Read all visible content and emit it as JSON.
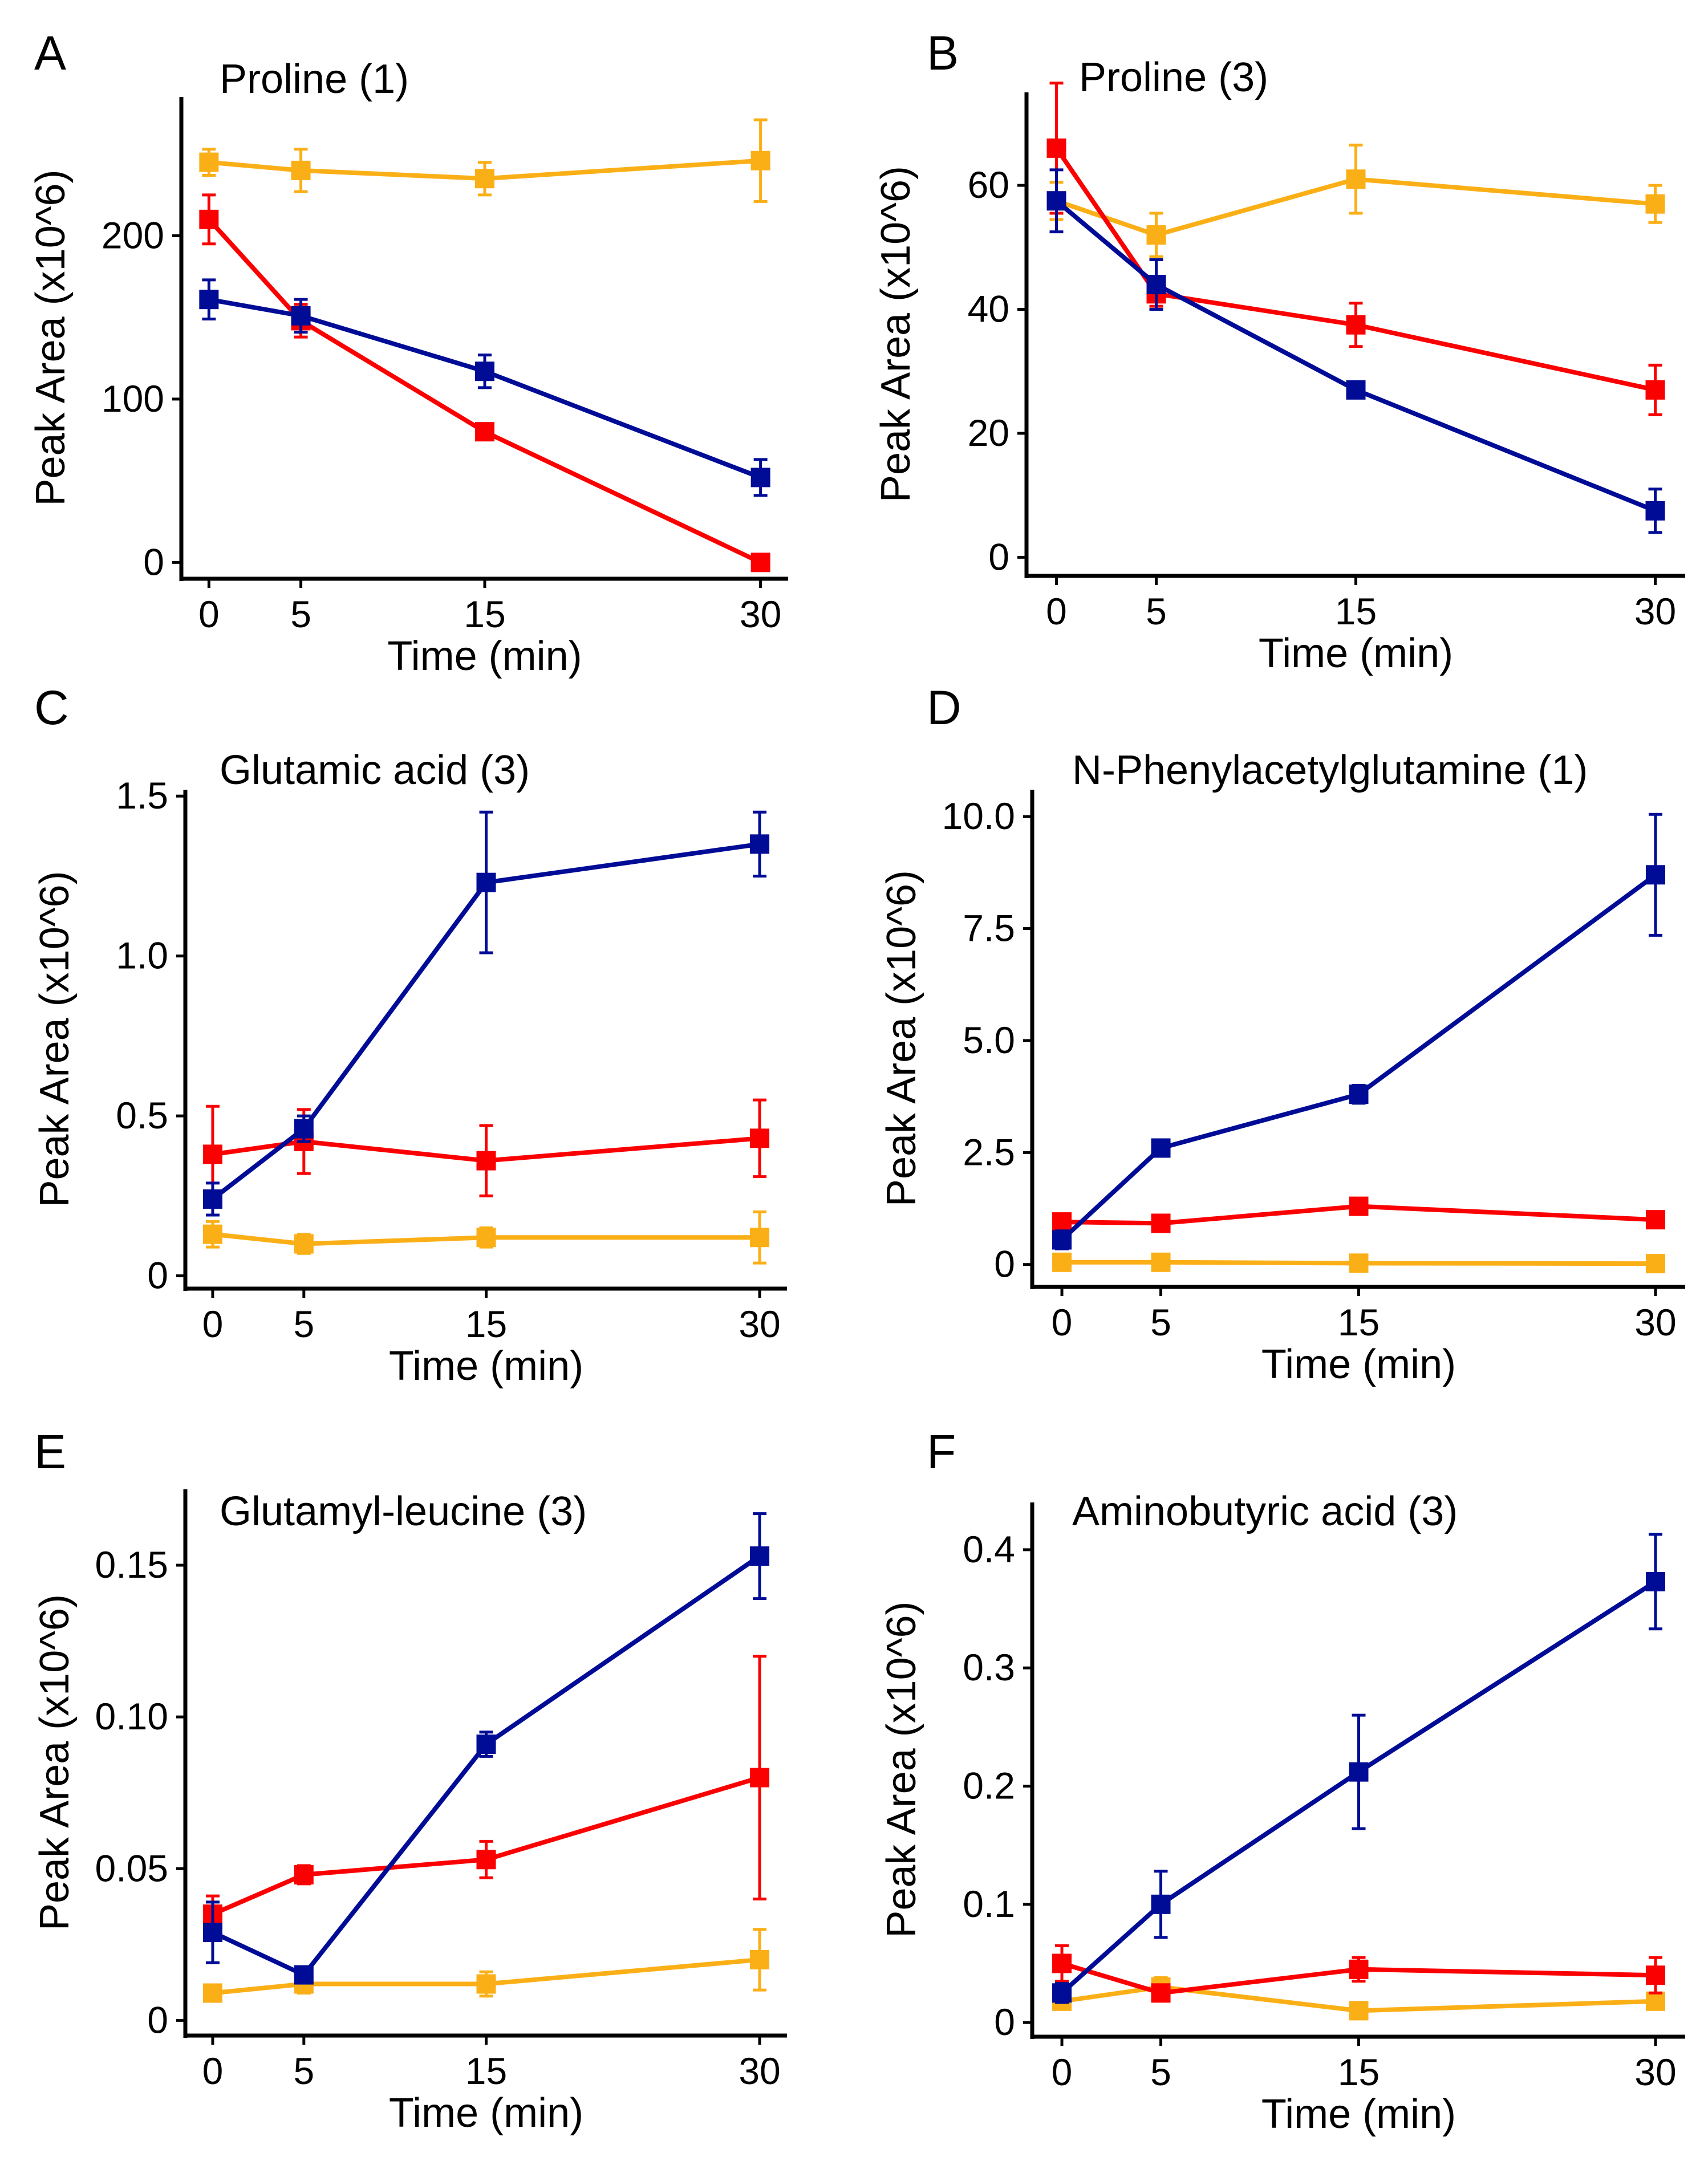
{
  "colors": {
    "blue": "#000c96",
    "red": "#fb0000",
    "orange": "#fbaf17",
    "axis": "#000000"
  },
  "chart_data": [
    {
      "panel": "A",
      "type": "line",
      "title": "Proline (1)",
      "xlabel": "Time (min)",
      "ylabel": "Peak Area (x10^6)",
      "x": [
        0,
        5,
        15,
        30
      ],
      "xlim": [
        -1.5,
        31.5
      ],
      "ylim": [
        -10,
        285
      ],
      "yticks": [
        0,
        100,
        200
      ],
      "ytick_labels": [
        "0",
        "100",
        "200"
      ],
      "xtick_labels": [
        "0",
        "5",
        "15",
        "30"
      ],
      "series": [
        {
          "name": "orange",
          "color": "orange",
          "values": [
            245,
            240,
            235,
            246
          ],
          "errors": [
            8,
            13,
            10,
            25
          ]
        },
        {
          "name": "red",
          "color": "red",
          "values": [
            210,
            148,
            80,
            0
          ],
          "errors": [
            15,
            10,
            3,
            2
          ]
        },
        {
          "name": "blue",
          "color": "blue",
          "values": [
            161,
            151,
            117,
            52
          ],
          "errors": [
            12,
            10,
            10,
            11
          ]
        }
      ]
    },
    {
      "panel": "B",
      "type": "line",
      "title": "Proline (3)",
      "xlabel": "Time (min)",
      "ylabel": "Peak Area (x10^6)",
      "x": [
        0,
        5,
        15,
        30
      ],
      "xlim": [
        -1.5,
        31.5
      ],
      "ylim": [
        -3,
        75
      ],
      "yticks": [
        0,
        20,
        40,
        60
      ],
      "ytick_labels": [
        "0",
        "20",
        "40",
        "60"
      ],
      "xtick_labels": [
        "0",
        "5",
        "15",
        "30"
      ],
      "series": [
        {
          "name": "orange",
          "color": "orange",
          "values": [
            57.5,
            52,
            61,
            57
          ],
          "errors": [
            3,
            3.5,
            5.5,
            3
          ]
        },
        {
          "name": "red",
          "color": "red",
          "values": [
            66,
            42.5,
            37.5,
            27
          ],
          "errors": [
            10.5,
            2,
            3.5,
            4
          ]
        },
        {
          "name": "blue",
          "color": "blue",
          "values": [
            57.5,
            44,
            27,
            7.5
          ],
          "errors": [
            5,
            4,
            1,
            3.5
          ]
        }
      ]
    },
    {
      "panel": "C",
      "type": "line",
      "title": "Glutamic acid (3)",
      "xlabel": "Time (min)",
      "ylabel": "Peak Area (x10^6)",
      "x": [
        0,
        5,
        15,
        30
      ],
      "xlim": [
        -1.5,
        31.5
      ],
      "ylim": [
        -0.04,
        1.52
      ],
      "yticks": [
        0,
        0.5,
        1.0,
        1.5
      ],
      "ytick_labels": [
        "0",
        "0.5",
        "1.0",
        "1.5"
      ],
      "xtick_labels": [
        "0",
        "5",
        "15",
        "30"
      ],
      "series": [
        {
          "name": "orange",
          "color": "orange",
          "values": [
            0.13,
            0.1,
            0.12,
            0.12
          ],
          "errors": [
            0.04,
            0.03,
            0.03,
            0.08
          ]
        },
        {
          "name": "red",
          "color": "red",
          "values": [
            0.38,
            0.42,
            0.36,
            0.43
          ],
          "errors": [
            0.15,
            0.1,
            0.11,
            0.12
          ]
        },
        {
          "name": "blue",
          "color": "blue",
          "values": [
            0.24,
            0.46,
            1.23,
            1.35
          ],
          "errors": [
            0.05,
            0.04,
            0.22,
            0.1
          ]
        }
      ]
    },
    {
      "panel": "D",
      "type": "line",
      "title": "N-Phenylacetylglutamine (1)",
      "xlabel": "Time (min)",
      "ylabel": "Peak Area (x10^6)",
      "x": [
        0,
        5,
        15,
        30
      ],
      "xlim": [
        -1.5,
        31.5
      ],
      "ylim": [
        -0.5,
        10.6
      ],
      "yticks": [
        0,
        2.5,
        5.0,
        7.5,
        10.0
      ],
      "ytick_labels": [
        "0",
        "2.5",
        "5.0",
        "7.5",
        "10.0"
      ],
      "xtick_labels": [
        "0",
        "5",
        "15",
        "30"
      ],
      "series": [
        {
          "name": "orange",
          "color": "orange",
          "values": [
            0.05,
            0.05,
            0.03,
            0.02
          ],
          "errors": [
            0.05,
            0.05,
            0.05,
            0.05
          ]
        },
        {
          "name": "red",
          "color": "red",
          "values": [
            0.95,
            0.92,
            1.3,
            1.0
          ],
          "errors": [
            0.1,
            0.1,
            0.15,
            0.15
          ]
        },
        {
          "name": "blue",
          "color": "blue",
          "values": [
            0.55,
            2.6,
            3.8,
            8.7
          ],
          "errors": [
            0.2,
            0.1,
            0.2,
            1.35
          ]
        }
      ]
    },
    {
      "panel": "E",
      "type": "line",
      "title": "Glutamyl-leucine (3)",
      "xlabel": "Time (min)",
      "ylabel": "Peak Area (x10^6)",
      "x": [
        0,
        5,
        15,
        30
      ],
      "xlim": [
        -1.5,
        31.5
      ],
      "ylim": [
        -0.005,
        0.175
      ],
      "yticks": [
        0,
        0.05,
        0.1,
        0.15
      ],
      "ytick_labels": [
        "0",
        "0.05",
        "0.10",
        "0.15"
      ],
      "xtick_labels": [
        "0",
        "5",
        "15",
        "30"
      ],
      "series": [
        {
          "name": "orange",
          "color": "orange",
          "values": [
            0.009,
            0.012,
            0.012,
            0.02
          ],
          "errors": [
            0.002,
            0.003,
            0.004,
            0.01
          ]
        },
        {
          "name": "red",
          "color": "red",
          "values": [
            0.035,
            0.048,
            0.053,
            0.08
          ],
          "errors": [
            0.006,
            0.003,
            0.006,
            0.04
          ]
        },
        {
          "name": "blue",
          "color": "blue",
          "values": [
            0.029,
            0.015,
            0.091,
            0.153
          ],
          "errors": [
            0.01,
            0.002,
            0.004,
            0.014
          ]
        }
      ]
    },
    {
      "panel": "F",
      "type": "line",
      "title": "Aminobutyric acid (3)",
      "xlabel": "Time (min)",
      "ylabel": "Peak Area (x10^6)",
      "x": [
        0,
        5,
        15,
        30
      ],
      "xlim": [
        -1.5,
        31.5
      ],
      "ylim": [
        -0.012,
        0.44
      ],
      "yticks": [
        0,
        0.1,
        0.2,
        0.3,
        0.4
      ],
      "ytick_labels": [
        "0",
        "0.1",
        "0.2",
        "0.3",
        "0.4"
      ],
      "xtick_labels": [
        "0",
        "5",
        "15",
        "30"
      ],
      "series": [
        {
          "name": "orange",
          "color": "orange",
          "values": [
            0.018,
            0.03,
            0.01,
            0.018
          ],
          "errors": [
            0.005,
            0.008,
            0.005,
            0.005
          ]
        },
        {
          "name": "red",
          "color": "red",
          "values": [
            0.05,
            0.025,
            0.045,
            0.04
          ],
          "errors": [
            0.015,
            0.005,
            0.01,
            0.015
          ]
        },
        {
          "name": "blue",
          "color": "blue",
          "values": [
            0.025,
            0.1,
            0.212,
            0.373
          ],
          "errors": [
            0.008,
            0.028,
            0.048,
            0.04
          ]
        }
      ]
    }
  ]
}
